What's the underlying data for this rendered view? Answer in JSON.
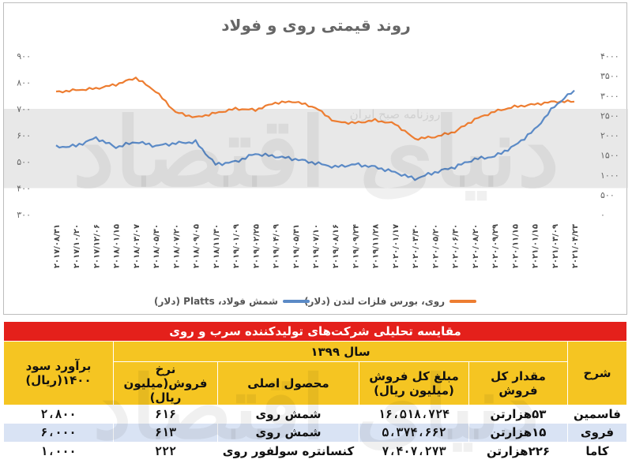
{
  "chart_data": {
    "type": "line",
    "title": "روند قیمتی روی و فولاد",
    "x": [
      "۲۰۱۷/۰۸/۳۱",
      "۲۰۱۷/۱۰/۲۰",
      "۲۰۱۷/۱۲/۰۶",
      "۲۰۱۸/۰۱/۱۵",
      "۲۰۱۸/۰۳/۰۷",
      "۲۰۱۸/۰۵/۳۰",
      "۲۰۱۸/۰۷/۲۰",
      "۲۰۱۸/۰۹/۰۵",
      "۲۰۱۸/۱۱/۳۰",
      "۲۰۱۹/۰۱/۰۹",
      "۲۰۱۹/۰۲/۲۵",
      "۲۰۱۹/۰۴/۰۹",
      "۲۰۱۹/۰۵/۳۱",
      "۲۰۱۹/۰۷/۱۰",
      "۲۰۱۹/۰۸/۱۶",
      "۲۰۱۹/۰۹/۲۴",
      "۲۰۱۹/۱۱/۲۸",
      "۲۰۲۰/۰۱/۱۷",
      "۲۰۲۰/۰۳/۳۰",
      "۲۰۲۰/۰۵/۲۰",
      "۲۰۲۰/۰۶/۳۰",
      "۲۰۲۰/۰۸/۲۰",
      "۲۰۲۰/۰۹/۲۹",
      "۲۰۲۰/۱۱/۱۵",
      "۲۰۲۱/۰۱/۱۵",
      "۲۰۲۱/۰۳/۰۹",
      "۲۰۲۱/۰۴/۲۳"
    ],
    "y_left": {
      "label": "",
      "ticks": [
        "۳۰۰",
        "۴۰۰",
        "۵۰۰",
        "۶۰۰",
        "۷۰۰",
        "۸۰۰",
        "۹۰۰"
      ],
      "range": [
        300,
        900
      ]
    },
    "y_right": {
      "label": "",
      "ticks": [
        "۰",
        "۵۰۰",
        "۱۰۰۰",
        "۱۵۰۰",
        "۲۰۰۰",
        "۲۵۰۰",
        "۳۰۰۰",
        "۳۵۰۰",
        "۴۰۰۰"
      ],
      "range": [
        0,
        4000
      ]
    },
    "series": [
      {
        "name": "روی، بورس فلزات لندن (دلار)",
        "axis": "right",
        "color": "#ed7d31",
        "values": [
          3090,
          3140,
          3180,
          3280,
          3450,
          3110,
          2580,
          2450,
          2560,
          2670,
          2640,
          2820,
          2850,
          2700,
          2340,
          2310,
          2380,
          2290,
          1910,
          1960,
          2090,
          2400,
          2600,
          2720,
          2780,
          2850,
          2850
        ]
      },
      {
        "name": "شمش فولاد، Platts (دلار)",
        "axis": "left",
        "color": "#5b8ac6",
        "values": [
          555,
          560,
          590,
          555,
          575,
          560,
          570,
          575,
          490,
          500,
          530,
          520,
          510,
          495,
          480,
          490,
          480,
          460,
          435,
          460,
          480,
          510,
          520,
          560,
          620,
          710,
          770
        ]
      }
    ],
    "legend": "bottom",
    "grid": false
  },
  "watermark": {
    "brand": "دنیای اقتصاد",
    "subtitle": "روزنامه صبح ایران"
  },
  "table": {
    "caption": "مقایسه تحلیلی شرکت‌های تولیدکننده سرب و روی",
    "year": "سال ۱۳۹۹",
    "headers": {
      "company": "شرح",
      "volume": "مقدار کل فروش",
      "amount": "مبلغ کل فروش (میلیون ریال)",
      "product": "محصول اصلی",
      "rate": "نرخ فروش(میلیون ریال)",
      "profit": "برآورد سود ۱۴۰۰(ریال)"
    },
    "rows": [
      {
        "company": "فاسمین",
        "volume": "۵۳هزارتن",
        "amount": "۱۶،۵۱۸،۷۲۴",
        "product": "شمش روی",
        "rate": "۶۱۶",
        "profit": "۲،۸۰۰"
      },
      {
        "company": "فروی",
        "volume": "۱۵هزارتن",
        "amount": "۵،۳۷۴،۶۶۲",
        "product": "شمش روی",
        "rate": "۶۱۳",
        "profit": "۶،۰۰۰"
      },
      {
        "company": "کاما",
        "volume": "۲۲۶هزارتن",
        "amount": "۷،۴۰۷،۲۷۳",
        "product": "کنسانتره سولفور روی",
        "rate": "۲۲۲",
        "profit": "۱،۰۰۰"
      }
    ]
  }
}
